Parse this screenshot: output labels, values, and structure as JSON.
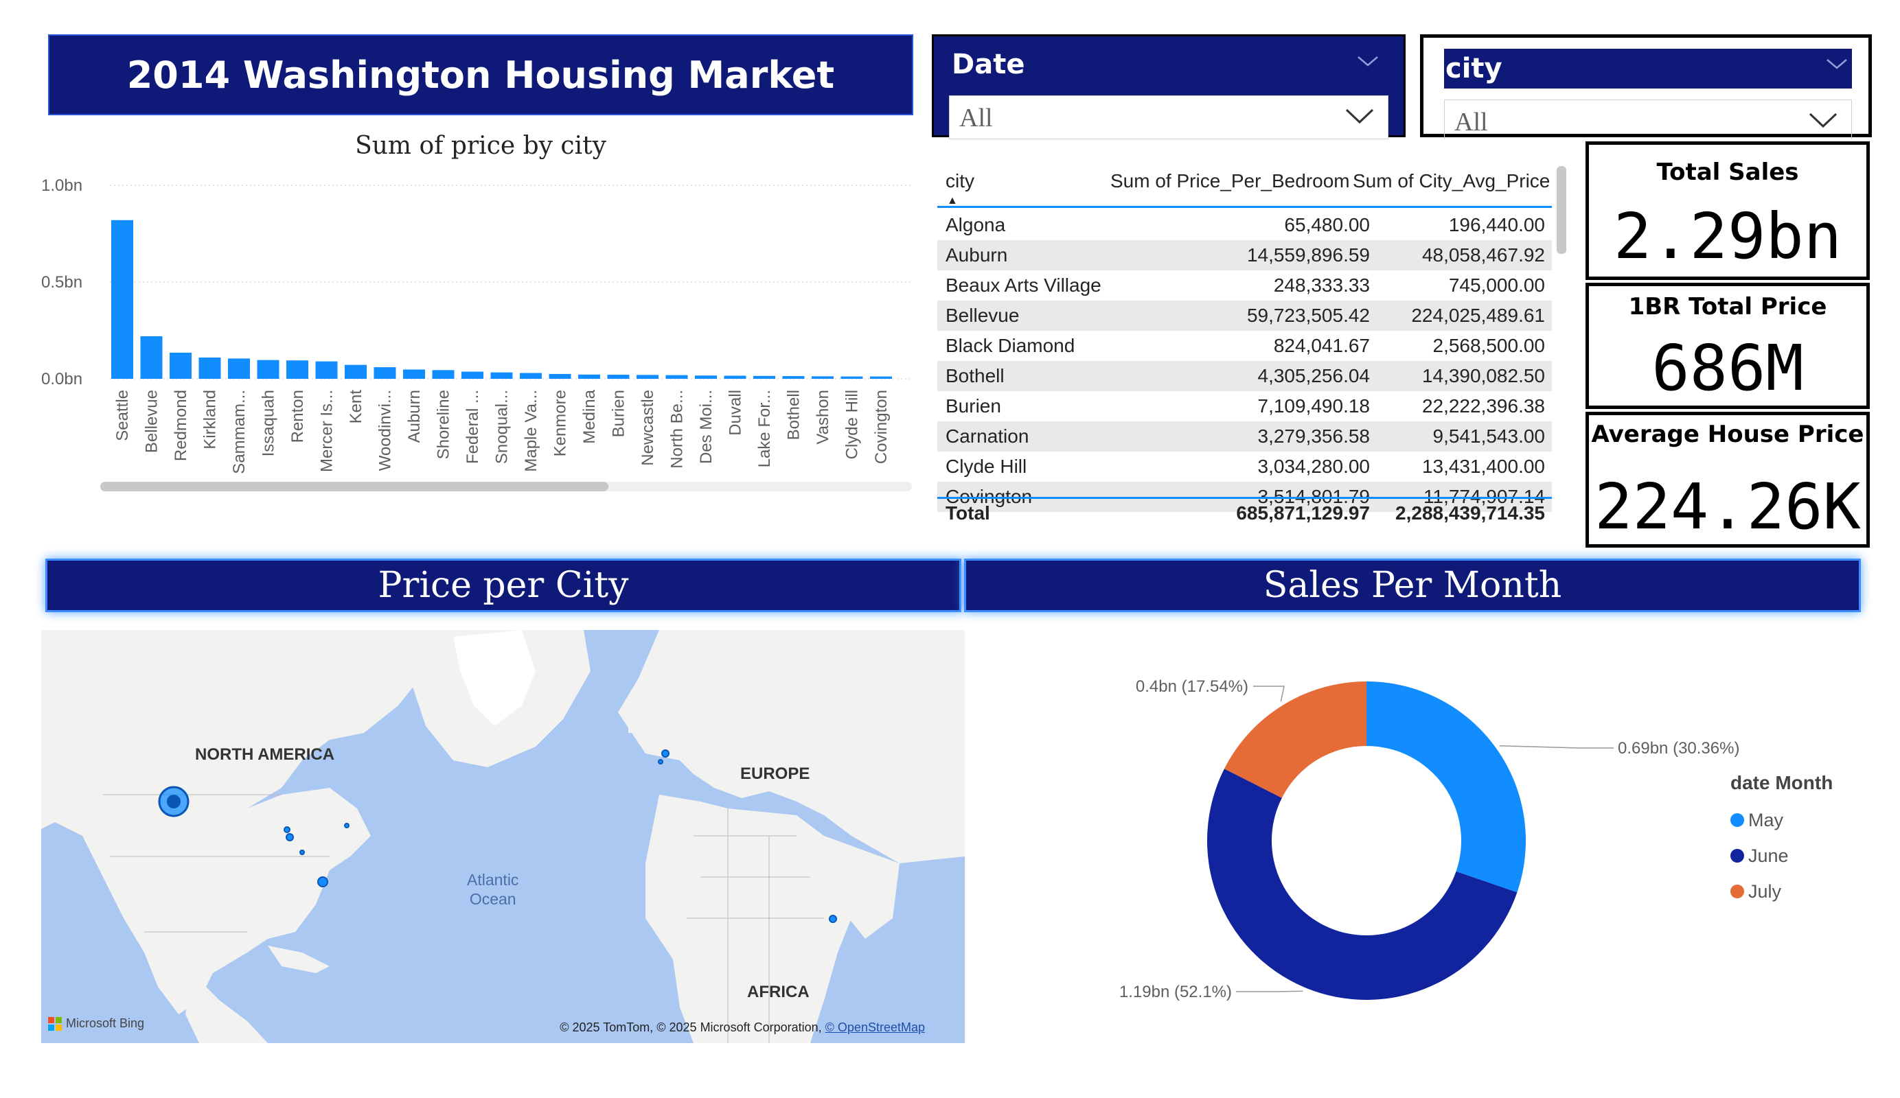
{
  "header": {
    "title": "2014 Washington Housing Market"
  },
  "slicers": {
    "date": {
      "label": "Date",
      "value": "All"
    },
    "city": {
      "label": "city",
      "value": "All"
    }
  },
  "table": {
    "columns": [
      "city",
      "Sum of Price_Per_Bedroom",
      "Sum of City_Avg_Price"
    ],
    "rows": [
      [
        "Algona",
        "65,480.00",
        "196,440.00"
      ],
      [
        "Auburn",
        "14,559,896.59",
        "48,058,467.92"
      ],
      [
        "Beaux Arts Village",
        "248,333.33",
        "745,000.00"
      ],
      [
        "Bellevue",
        "59,723,505.42",
        "224,025,489.61"
      ],
      [
        "Black Diamond",
        "824,041.67",
        "2,568,500.00"
      ],
      [
        "Bothell",
        "4,305,256.04",
        "14,390,082.50"
      ],
      [
        "Burien",
        "7,109,490.18",
        "22,222,396.38"
      ],
      [
        "Carnation",
        "3,279,356.58",
        "9,541,543.00"
      ],
      [
        "Clyde Hill",
        "3,034,280.00",
        "13,431,400.00"
      ],
      [
        "Covington",
        "3,514,801.79",
        "11,774,907.14"
      ]
    ],
    "total": [
      "Total",
      "685,871,129.97",
      "2,288,439,714.35"
    ]
  },
  "kpis": {
    "total_sales": {
      "label": "Total Sales",
      "value": "2.29bn"
    },
    "br1_total": {
      "label": "1BR Total Price",
      "value": "686M"
    },
    "avg_price": {
      "label": "Average House Price",
      "value": "224.26K"
    }
  },
  "sections": {
    "map_title": "Price per City",
    "donut_title": "Sales Per Month"
  },
  "map": {
    "labels": {
      "north_america": "NORTH AMERICA",
      "europe": "EUROPE",
      "africa": "AFRICA",
      "ocean_line1": "Atlantic",
      "ocean_line2": "Ocean"
    },
    "bing": "Microsoft Bing",
    "copyright": "© 2025 TomTom, © 2025 Microsoft Corporation,",
    "copyright_link": "© OpenStreetMap"
  },
  "chart_data": [
    {
      "type": "bar",
      "title": "Sum of price by city",
      "xlabel": "",
      "ylabel": "",
      "ylim": [
        0,
        1.0
      ],
      "yticks": [
        "0.0bn",
        "0.5bn",
        "1.0bn"
      ],
      "categories": [
        "Seattle",
        "Bellevue",
        "Redmond",
        "Kirkland",
        "Sammam...",
        "Issaquah",
        "Renton",
        "Mercer Is...",
        "Kent",
        "Woodinvi...",
        "Auburn",
        "Shoreline",
        "Federal ...",
        "Snoqual...",
        "Maple Va...",
        "Kenmore",
        "Medina",
        "Burien",
        "Newcastle",
        "North Be...",
        "Des Moi...",
        "Duvall",
        "Lake For...",
        "Bothell",
        "Vashon",
        "Clyde Hill",
        "Covington"
      ],
      "values": [
        0.82,
        0.22,
        0.135,
        0.11,
        0.105,
        0.097,
        0.095,
        0.09,
        0.072,
        0.06,
        0.048,
        0.045,
        0.037,
        0.033,
        0.03,
        0.025,
        0.022,
        0.021,
        0.02,
        0.019,
        0.017,
        0.016,
        0.015,
        0.014,
        0.013,
        0.012,
        0.012
      ],
      "bar_color": "#118dff",
      "grid": true
    },
    {
      "type": "pie",
      "legend_title": "date Month",
      "legend_placement": "right",
      "slices": [
        {
          "name": "May",
          "value": 0.69,
          "label": "0.69bn (30.36%)",
          "color": "#118dff"
        },
        {
          "name": "June",
          "value": 1.19,
          "label": "1.19bn (52.1%)",
          "color": "#12239e"
        },
        {
          "name": "July",
          "value": 0.4,
          "label": "0.4bn (17.54%)",
          "color": "#e66c37"
        }
      ]
    }
  ]
}
